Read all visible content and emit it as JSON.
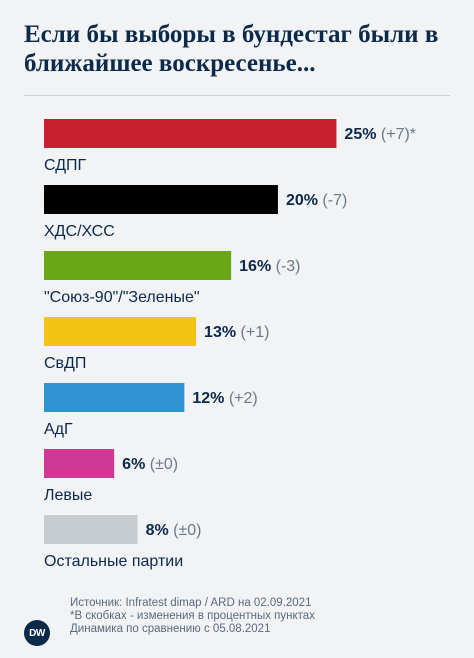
{
  "title": "Если бы выборы в бундестаг были в ближайшее воскресенье...",
  "chart_data": {
    "type": "bar",
    "orientation": "horizontal",
    "categories": [
      "СДПГ",
      "ХДС/ХСС",
      "\"Союз-90\"/\"Зеленые\"",
      "СвДП",
      "АдГ",
      "Левые",
      "Остальные партии"
    ],
    "values": [
      25,
      20,
      16,
      13,
      12,
      6,
      8
    ],
    "value_labels": [
      "25%",
      "20%",
      "16%",
      "13%",
      "12%",
      "6%",
      "8%"
    ],
    "change_labels": [
      "(+7)*",
      "(-7)",
      "(-3)",
      "(+1)",
      "(+2)",
      "(±0)",
      "(±0)"
    ],
    "colors": [
      "#c8202f",
      "#000000",
      "#6aa617",
      "#f3c316",
      "#3093d1",
      "#cf3895",
      "#c7ccd1"
    ],
    "xlim": [
      0,
      33
    ],
    "grid": false,
    "legend": "none"
  },
  "footer": {
    "source": "Источник: Infratest dimap / ARD на 02.09.2021",
    "note1": "*В скобках - изменения в процентных пунктах",
    "note2": "Динамика по сравнению с 05.08.2021"
  },
  "logo": "DW"
}
